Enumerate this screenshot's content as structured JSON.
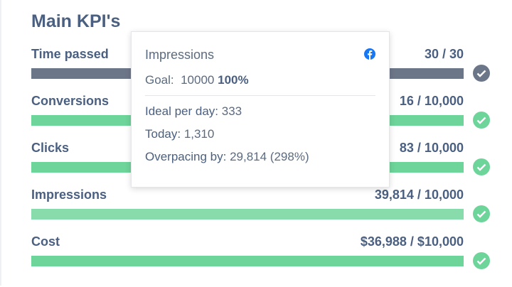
{
  "header": {
    "title": "Main KPI's"
  },
  "kpis": [
    {
      "label": "Time passed",
      "value": "30 / 30",
      "status": "neutral"
    },
    {
      "label": "Conversions",
      "value": "16 / 10,000",
      "status": "done"
    },
    {
      "label": "Clicks",
      "value": "83 / 10,000",
      "status": "done"
    },
    {
      "label": "Impressions",
      "value": "39,814 / 10,000",
      "status": "done"
    },
    {
      "label": "Cost",
      "value": "$36,988 / $10,000",
      "status": "done"
    }
  ],
  "tooltip": {
    "title": "Impressions",
    "goal": {
      "label": "Goal:",
      "value": "10000",
      "percent": "100%"
    },
    "rows": [
      {
        "label": "Ideal per day:",
        "value": "333"
      },
      {
        "label": "Today:",
        "value": "1,310"
      },
      {
        "label": "Overpacing by:",
        "value": "29,814 (298%)"
      }
    ]
  }
}
